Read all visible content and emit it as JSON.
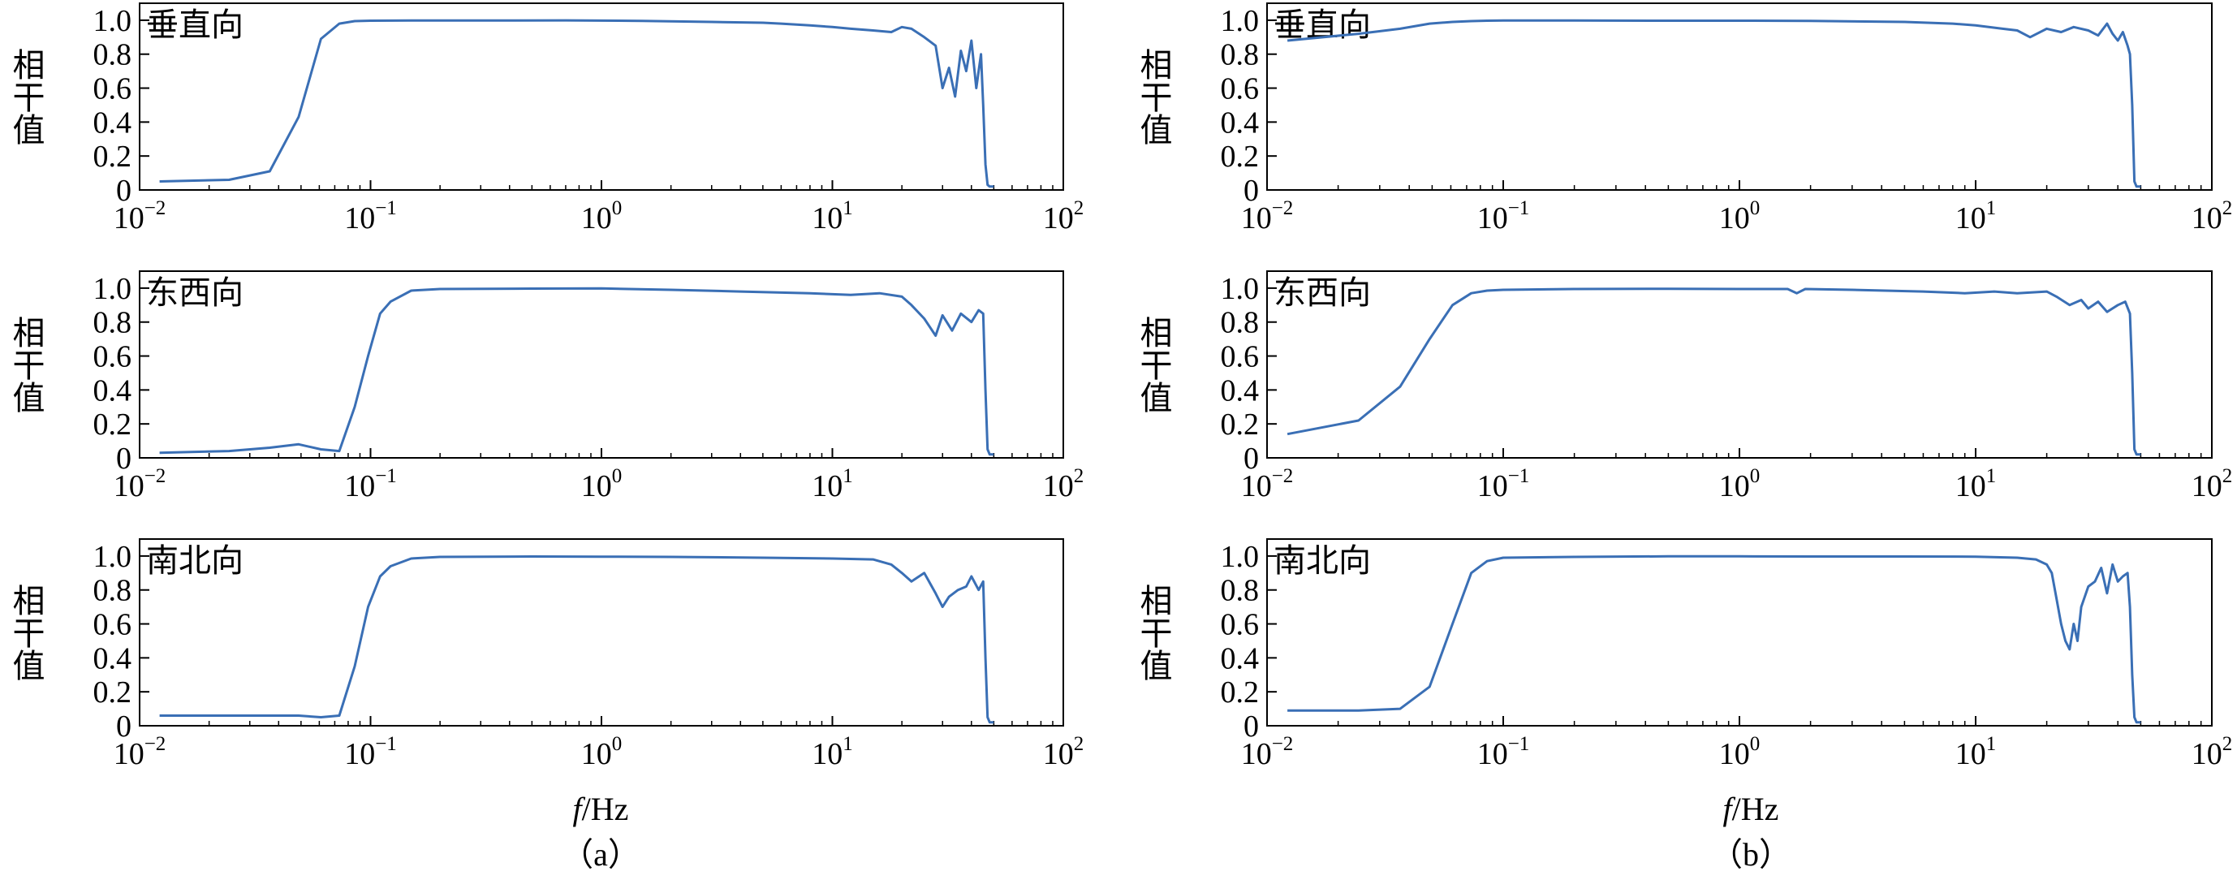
{
  "figure": {
    "columns": [
      {
        "panel_label": "（a）",
        "xlabel_italic": "f",
        "xlabel_unit": "/Hz"
      },
      {
        "panel_label": "（b）",
        "xlabel_italic": "f",
        "xlabel_unit": "/Hz"
      }
    ]
  },
  "chart_data": [
    {
      "type": "line",
      "column": "a",
      "annotation": "垂直向",
      "xlabel": "",
      "ylabel": "相干值",
      "xscale": "log",
      "xlim": [
        0.01,
        100
      ],
      "ylim": [
        0,
        1.1
      ],
      "x_ticks": [
        0.01,
        0.1,
        1,
        10,
        100
      ],
      "x_tick_labels": [
        {
          "base": "10",
          "exp": "−2"
        },
        {
          "base": "10",
          "exp": "−1"
        },
        {
          "base": "10",
          "exp": "0"
        },
        {
          "base": "10",
          "exp": "1"
        },
        {
          "base": "10",
          "exp": "2"
        }
      ],
      "y_ticks": [
        0,
        0.2,
        0.4,
        0.6,
        0.8,
        1.0
      ],
      "y_tick_labels": [
        "0",
        "0.2",
        "0.4",
        "0.6",
        "0.8",
        "1.0"
      ],
      "color": "#3a6fb5",
      "x": [
        0.0122,
        0.0244,
        0.0366,
        0.0488,
        0.061,
        0.0732,
        0.0854,
        0.1,
        0.15,
        0.3,
        0.7,
        1.5,
        3,
        5,
        6,
        8,
        10,
        12,
        15,
        18,
        20,
        22,
        25,
        28,
        30,
        32,
        34,
        36,
        38,
        40,
        42,
        44,
        45,
        46,
        47,
        48,
        50
      ],
      "y": [
        0.05,
        0.06,
        0.11,
        0.43,
        0.89,
        0.98,
        0.995,
        0.997,
        0.998,
        0.998,
        0.999,
        0.996,
        0.99,
        0.985,
        0.98,
        0.97,
        0.96,
        0.95,
        0.94,
        0.93,
        0.96,
        0.95,
        0.9,
        0.85,
        0.6,
        0.72,
        0.55,
        0.82,
        0.7,
        0.88,
        0.6,
        0.8,
        0.5,
        0.15,
        0.03,
        0.02,
        0.02
      ]
    },
    {
      "type": "line",
      "column": "a",
      "annotation": "东西向",
      "xlabel": "",
      "ylabel": "相干值",
      "xscale": "log",
      "xlim": [
        0.01,
        100
      ],
      "ylim": [
        0,
        1.1
      ],
      "x_ticks": [
        0.01,
        0.1,
        1,
        10,
        100
      ],
      "x_tick_labels": [
        {
          "base": "10",
          "exp": "−2"
        },
        {
          "base": "10",
          "exp": "−1"
        },
        {
          "base": "10",
          "exp": "0"
        },
        {
          "base": "10",
          "exp": "1"
        },
        {
          "base": "10",
          "exp": "2"
        }
      ],
      "y_ticks": [
        0,
        0.2,
        0.4,
        0.6,
        0.8,
        1.0
      ],
      "y_tick_labels": [
        "0",
        "0.2",
        "0.4",
        "0.6",
        "0.8",
        "1.0"
      ],
      "color": "#3a6fb5",
      "x": [
        0.0122,
        0.0244,
        0.0366,
        0.0488,
        0.061,
        0.0732,
        0.0854,
        0.0976,
        0.11,
        0.122,
        0.15,
        0.2,
        0.5,
        1,
        2,
        4,
        8,
        12,
        16,
        20,
        22,
        25,
        28,
        30,
        33,
        36,
        40,
        43,
        45,
        46,
        47,
        48,
        50
      ],
      "y": [
        0.03,
        0.04,
        0.06,
        0.08,
        0.05,
        0.04,
        0.3,
        0.6,
        0.85,
        0.92,
        0.985,
        0.995,
        0.997,
        0.998,
        0.99,
        0.98,
        0.97,
        0.96,
        0.97,
        0.95,
        0.9,
        0.82,
        0.72,
        0.84,
        0.75,
        0.85,
        0.8,
        0.87,
        0.85,
        0.4,
        0.05,
        0.02,
        0.02
      ]
    },
    {
      "type": "line",
      "column": "a",
      "annotation": "南北向",
      "xlabel": "",
      "ylabel": "相干值",
      "xscale": "log",
      "xlim": [
        0.01,
        100
      ],
      "ylim": [
        0,
        1.1
      ],
      "x_ticks": [
        0.01,
        0.1,
        1,
        10,
        100
      ],
      "x_tick_labels": [
        {
          "base": "10",
          "exp": "−2"
        },
        {
          "base": "10",
          "exp": "−1"
        },
        {
          "base": "10",
          "exp": "0"
        },
        {
          "base": "10",
          "exp": "1"
        },
        {
          "base": "10",
          "exp": "2"
        }
      ],
      "y_ticks": [
        0,
        0.2,
        0.4,
        0.6,
        0.8,
        1.0
      ],
      "y_tick_labels": [
        "0",
        "0.2",
        "0.4",
        "0.6",
        "0.8",
        "1.0"
      ],
      "color": "#3a6fb5",
      "x": [
        0.0122,
        0.0244,
        0.0366,
        0.0488,
        0.061,
        0.0732,
        0.0854,
        0.0976,
        0.11,
        0.122,
        0.15,
        0.2,
        0.5,
        1,
        2,
        5,
        10,
        15,
        18,
        20,
        22,
        25,
        28,
        30,
        32,
        35,
        38,
        40,
        43,
        45,
        46,
        47,
        48,
        50
      ],
      "y": [
        0.06,
        0.06,
        0.06,
        0.06,
        0.05,
        0.06,
        0.35,
        0.7,
        0.88,
        0.94,
        0.985,
        0.995,
        0.997,
        0.996,
        0.995,
        0.99,
        0.985,
        0.98,
        0.95,
        0.9,
        0.85,
        0.9,
        0.78,
        0.7,
        0.76,
        0.8,
        0.82,
        0.88,
        0.8,
        0.85,
        0.4,
        0.05,
        0.02,
        0.02
      ]
    },
    {
      "type": "line",
      "column": "b",
      "annotation": "垂直向",
      "xlabel": "",
      "ylabel": "相干值",
      "xscale": "log",
      "xlim": [
        0.01,
        100
      ],
      "ylim": [
        0,
        1.1
      ],
      "x_ticks": [
        0.01,
        0.1,
        1,
        10,
        100
      ],
      "x_tick_labels": [
        {
          "base": "10",
          "exp": "−2"
        },
        {
          "base": "10",
          "exp": "−1"
        },
        {
          "base": "10",
          "exp": "0"
        },
        {
          "base": "10",
          "exp": "1"
        },
        {
          "base": "10",
          "exp": "2"
        }
      ],
      "y_ticks": [
        0,
        0.2,
        0.4,
        0.6,
        0.8,
        1.0
      ],
      "y_tick_labels": [
        "0",
        "0.2",
        "0.4",
        "0.6",
        "0.8",
        "1.0"
      ],
      "color": "#3a6fb5",
      "x": [
        0.0122,
        0.0244,
        0.0366,
        0.0488,
        0.061,
        0.0732,
        0.0854,
        0.1,
        0.2,
        0.5,
        1,
        2,
        5,
        8,
        10,
        13,
        15,
        17,
        20,
        23,
        26,
        30,
        33,
        36,
        38,
        40,
        42,
        44,
        45,
        46,
        47,
        48,
        50
      ],
      "y": [
        0.88,
        0.92,
        0.95,
        0.98,
        0.99,
        0.995,
        0.997,
        0.998,
        0.998,
        0.997,
        0.997,
        0.996,
        0.99,
        0.98,
        0.97,
        0.95,
        0.94,
        0.9,
        0.95,
        0.93,
        0.96,
        0.94,
        0.91,
        0.98,
        0.92,
        0.88,
        0.93,
        0.85,
        0.8,
        0.5,
        0.05,
        0.02,
        0.02
      ]
    },
    {
      "type": "line",
      "column": "b",
      "annotation": "东西向",
      "xlabel": "",
      "ylabel": "相干值",
      "xscale": "log",
      "xlim": [
        0.01,
        100
      ],
      "ylim": [
        0,
        1.1
      ],
      "x_ticks": [
        0.01,
        0.1,
        1,
        10,
        100
      ],
      "x_tick_labels": [
        {
          "base": "10",
          "exp": "−2"
        },
        {
          "base": "10",
          "exp": "−1"
        },
        {
          "base": "10",
          "exp": "0"
        },
        {
          "base": "10",
          "exp": "1"
        },
        {
          "base": "10",
          "exp": "2"
        }
      ],
      "y_ticks": [
        0,
        0.2,
        0.4,
        0.6,
        0.8,
        1.0
      ],
      "y_tick_labels": [
        "0",
        "0.2",
        "0.4",
        "0.6",
        "0.8",
        "1.0"
      ],
      "color": "#3a6fb5",
      "x": [
        0.0122,
        0.0244,
        0.0366,
        0.0488,
        0.061,
        0.0732,
        0.0854,
        0.1,
        0.2,
        0.5,
        1,
        1.6,
        1.75,
        1.9,
        3,
        6,
        9,
        12,
        15,
        20,
        22,
        25,
        28,
        30,
        33,
        36,
        40,
        43,
        45,
        46,
        47,
        48,
        50
      ],
      "y": [
        0.14,
        0.22,
        0.42,
        0.7,
        0.9,
        0.97,
        0.985,
        0.99,
        0.995,
        0.996,
        0.995,
        0.995,
        0.97,
        0.995,
        0.99,
        0.98,
        0.97,
        0.98,
        0.97,
        0.98,
        0.95,
        0.9,
        0.93,
        0.88,
        0.92,
        0.86,
        0.9,
        0.92,
        0.85,
        0.5,
        0.05,
        0.02,
        0.02
      ]
    },
    {
      "type": "line",
      "column": "b",
      "annotation": "南北向",
      "xlabel": "",
      "ylabel": "相干值",
      "xscale": "log",
      "xlim": [
        0.01,
        100
      ],
      "ylim": [
        0,
        1.1
      ],
      "x_ticks": [
        0.01,
        0.1,
        1,
        10,
        100
      ],
      "x_tick_labels": [
        {
          "base": "10",
          "exp": "−2"
        },
        {
          "base": "10",
          "exp": "−1"
        },
        {
          "base": "10",
          "exp": "0"
        },
        {
          "base": "10",
          "exp": "1"
        },
        {
          "base": "10",
          "exp": "2"
        }
      ],
      "y_ticks": [
        0,
        0.2,
        0.4,
        0.6,
        0.8,
        1.0
      ],
      "y_tick_labels": [
        "0",
        "0.2",
        "0.4",
        "0.6",
        "0.8",
        "1.0"
      ],
      "color": "#3a6fb5",
      "x": [
        0.0122,
        0.0244,
        0.0366,
        0.0488,
        0.061,
        0.0732,
        0.0854,
        0.1,
        0.2,
        0.5,
        1,
        2,
        5,
        10,
        15,
        18,
        20,
        21,
        22,
        23,
        24,
        25,
        26,
        27,
        28,
        30,
        32,
        34,
        36,
        38,
        40,
        42,
        44,
        45,
        46,
        47,
        48,
        50
      ],
      "y": [
        0.09,
        0.09,
        0.1,
        0.23,
        0.6,
        0.9,
        0.97,
        0.99,
        0.995,
        0.998,
        0.998,
        0.997,
        0.997,
        0.996,
        0.99,
        0.98,
        0.95,
        0.9,
        0.75,
        0.6,
        0.5,
        0.45,
        0.6,
        0.5,
        0.7,
        0.82,
        0.85,
        0.93,
        0.78,
        0.95,
        0.85,
        0.88,
        0.9,
        0.7,
        0.3,
        0.05,
        0.02,
        0.02
      ]
    }
  ]
}
